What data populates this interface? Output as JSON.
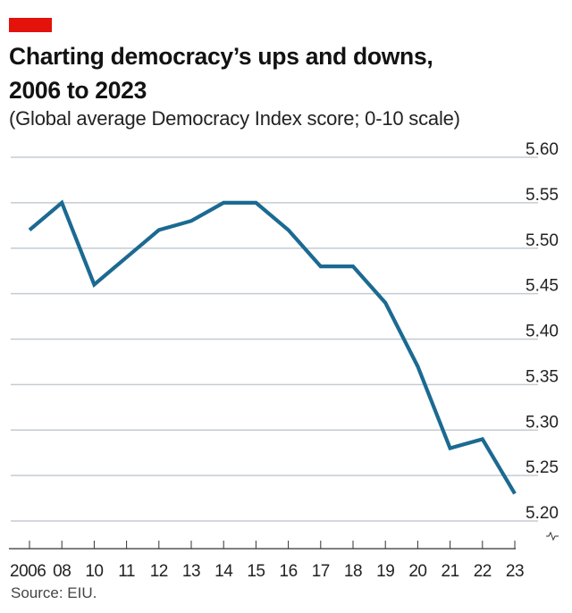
{
  "header": {
    "title_line1": "Charting democracy’s ups and downs,",
    "title_line2": "2006 to 2023",
    "subtitle": "(Global average Democracy Index score; 0-10 scale)"
  },
  "footer": {
    "source": "Source: EIU."
  },
  "colors": {
    "accent_bar": "#e3120b",
    "line": "#1b6a92",
    "grid": "#c5cbd0",
    "axis": "#333333"
  },
  "chart_data": {
    "type": "line",
    "title": "Charting democracy’s ups and downs, 2006 to 2023",
    "subtitle": "(Global average Democracy Index score; 0-10 scale)",
    "xlabel": "",
    "ylabel": "",
    "categories": [
      "2006",
      "08",
      "10",
      "11",
      "12",
      "13",
      "14",
      "15",
      "16",
      "17",
      "18",
      "19",
      "20",
      "21",
      "22",
      "23"
    ],
    "series": [
      {
        "name": "Global average Democracy Index score",
        "values": [
          5.52,
          5.55,
          5.46,
          5.49,
          5.52,
          5.53,
          5.55,
          5.55,
          5.52,
          5.48,
          5.48,
          5.44,
          5.37,
          5.28,
          5.29,
          5.23
        ]
      }
    ],
    "ylim": [
      5.2,
      5.6
    ],
    "yticks": [
      "5.60",
      "5.55",
      "5.50",
      "5.45",
      "5.40",
      "5.35",
      "5.30",
      "5.25",
      "5.20"
    ],
    "ytick_values": [
      5.6,
      5.55,
      5.5,
      5.45,
      5.4,
      5.35,
      5.3,
      5.25,
      5.2
    ],
    "y_axis_position": "right",
    "y_axis_break": true,
    "grid": true,
    "legend": "none",
    "source": "Source: EIU."
  }
}
